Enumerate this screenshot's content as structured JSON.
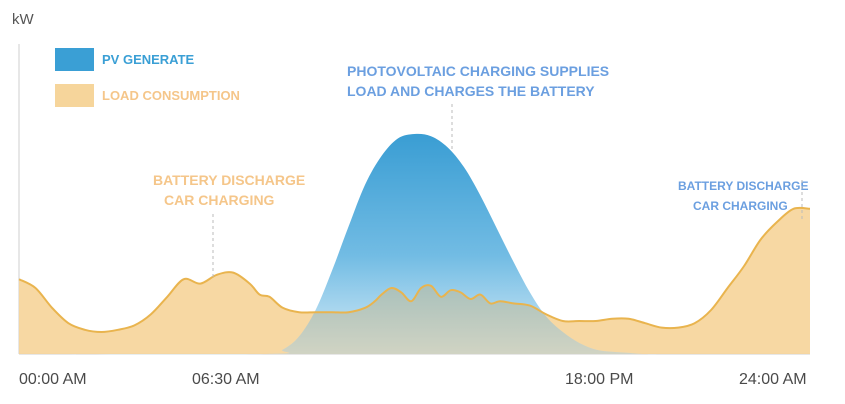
{
  "chart_data": {
    "type": "area",
    "ylabel": "kW",
    "xlabel": "",
    "x_ticks": [
      "00:00 AM",
      "06:30 AM",
      "18:00 PM",
      "24:00 AM"
    ],
    "x_tick_hours": [
      0,
      6.5,
      18,
      24
    ],
    "xlim": [
      0,
      24
    ],
    "ylim": [
      0,
      100
    ],
    "series": [
      {
        "name": "PV GENERATE",
        "color": "#3a9fd5",
        "x": [
          0,
          7.5,
          8.0,
          8.5,
          9.0,
          9.5,
          10.0,
          10.5,
          11.0,
          11.5,
          12.0,
          12.5,
          13.0,
          13.5,
          14.0,
          14.5,
          15.0,
          15.5,
          16.0,
          16.5,
          17.0,
          17.5,
          18.0,
          18.5,
          19.0,
          20.0,
          24.0
        ],
        "values": [
          0,
          0,
          2,
          8,
          20,
          38,
          58,
          77,
          90,
          98,
          100,
          99,
          94,
          85,
          72,
          57,
          42,
          28,
          17,
          10,
          5,
          2,
          1,
          0.5,
          0,
          0,
          0
        ]
      },
      {
        "name": "LOAD CONSUMPTION",
        "color": "#f5d397",
        "x": [
          0,
          0.5,
          1.0,
          1.5,
          2.0,
          2.5,
          3.0,
          3.5,
          4.0,
          4.5,
          5.0,
          5.5,
          6.0,
          6.5,
          7.0,
          7.3,
          7.6,
          8.0,
          8.5,
          9.0,
          9.5,
          10.0,
          10.5,
          10.8,
          11.0,
          11.3,
          11.6,
          11.9,
          12.2,
          12.5,
          12.8,
          13.1,
          13.4,
          13.7,
          14.0,
          14.3,
          14.6,
          15.0,
          15.5,
          16.0,
          16.5,
          17.0,
          17.5,
          18.0,
          18.5,
          19.0,
          19.5,
          20.0,
          20.5,
          21.0,
          21.5,
          22.0,
          22.5,
          23.0,
          23.5,
          24.0
        ],
        "values": [
          34,
          30,
          21,
          14,
          11,
          10,
          11,
          13,
          18,
          26,
          34,
          32,
          36,
          37,
          32,
          27,
          26,
          21,
          19,
          19,
          19,
          19,
          21,
          24,
          27,
          30,
          28,
          24,
          30,
          31,
          26,
          29,
          28,
          25,
          27,
          23,
          24,
          23,
          22,
          18,
          15,
          15,
          15,
          16,
          16,
          14,
          12,
          12,
          14,
          20,
          30,
          40,
          52,
          60,
          66,
          66
        ]
      }
    ],
    "legend": [
      {
        "label": "PV GENERATE",
        "color": "#3a9fd5"
      },
      {
        "label": "LOAD CONSUMPTION",
        "color": "#f5d397"
      }
    ],
    "annotations": [
      {
        "lines": [
          "BATTERY DISCHARGE",
          "CAR CHARGING"
        ],
        "at_hour": 6,
        "color": "#f5c68a"
      },
      {
        "lines": [
          "PHOTOVOLTAIC CHARGING SUPPLIES",
          "LOAD AND CHARGES THE BATTERY"
        ],
        "at_hour": 13,
        "color": "#6b9fe0"
      },
      {
        "lines": [
          "BATTERY DISCHARGE",
          "CAR CHARGING"
        ],
        "at_hour": 23.8,
        "color": "#6b9fe0"
      }
    ]
  }
}
